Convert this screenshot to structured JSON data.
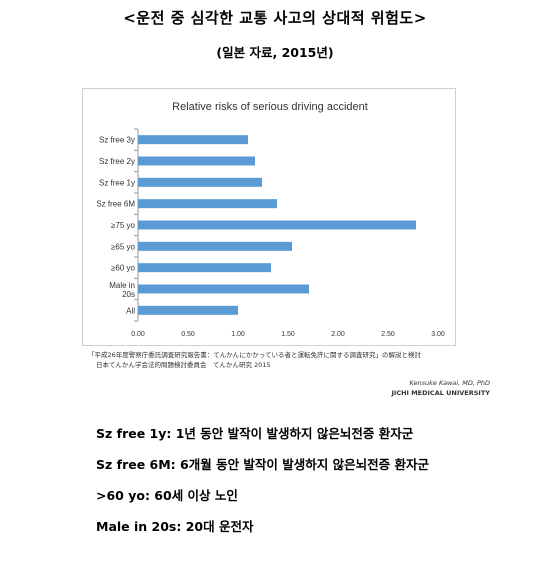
{
  "header": {
    "title": "<운전 중 심각한 교통 사고의 상대적 위험도>",
    "subtitle": "(일본 자료, 2015년)"
  },
  "chart_data": {
    "type": "bar",
    "orientation": "horizontal",
    "title": "Relative risks of serious driving accident",
    "xlabel": "",
    "ylabel": "",
    "xlim": [
      0,
      3
    ],
    "x_ticks": [
      "0.00",
      "0.50",
      "1.00",
      "1.50",
      "2.00",
      "2.50",
      "3.00"
    ],
    "grid": false,
    "legend": "none",
    "bar_color": "#5b9bd5",
    "categories": [
      "Sz free 3y",
      "Sz free 2y",
      "Sz free 1y",
      "Sz free 6M",
      "≥75 yo",
      "≥65 yo",
      "≥60 yo",
      "Male in 20s",
      "All"
    ],
    "values": [
      1.1,
      1.17,
      1.24,
      1.39,
      2.78,
      1.54,
      1.33,
      1.71,
      1.0
    ]
  },
  "source": {
    "line1": "「平成26年度警察庁委託調査研究報告書：てんかんにかかっている者と運転免許に関する調査研究」の解説と検討",
    "line2": "日本てんかん学会法的問題検討委員会　てんかん研究 2015"
  },
  "author": {
    "name": "Kensuke Kawai, MD, PhD",
    "org": "JICHI MEDICAL UNIVERSITY"
  },
  "definitions": [
    "Sz free 1y: 1년 동안 발작이 발생하지 않은뇌전증 환자군",
    "Sz free 6M: 6개월 동안 발작이 발생하지 않은뇌전증 환자군",
    ">60 yo: 60세 이상 노인",
    "Male in 20s: 20대 운전자"
  ]
}
